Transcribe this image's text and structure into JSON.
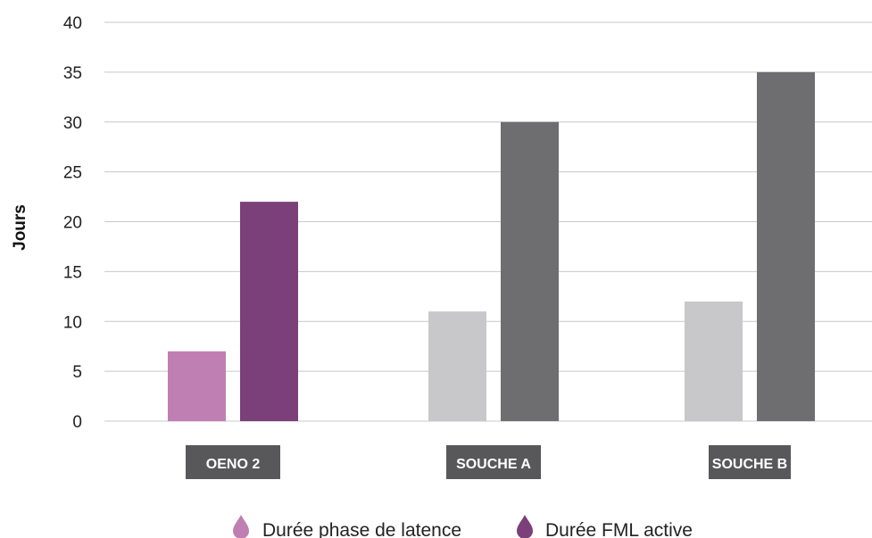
{
  "chart_data": {
    "type": "bar",
    "categories": [
      "OENO 2",
      "SOUCHE A",
      "SOUCHE B"
    ],
    "series": [
      {
        "name": "Durée phase de latence",
        "values": [
          7,
          11,
          12
        ]
      },
      {
        "name": "Durée FML active",
        "values": [
          22,
          30,
          35
        ]
      }
    ],
    "bar_colors": [
      [
        "#bf7fb3",
        "#7b3f79"
      ],
      [
        "#c8c8ca",
        "#6e6e70"
      ],
      [
        "#c8c8ca",
        "#6e6e70"
      ]
    ],
    "legend_colors": [
      "#bf7fb3",
      "#7b3f79"
    ],
    "category_label_bg": "#58585a",
    "gridline_color": "#c8c8c8",
    "title": "",
    "xlabel": "",
    "ylabel": "Jours",
    "ylim": [
      0,
      40
    ],
    "yticks": [
      0,
      5,
      10,
      15,
      20,
      25,
      30,
      35,
      40
    ],
    "grid": true,
    "legend_position": "bottom"
  }
}
